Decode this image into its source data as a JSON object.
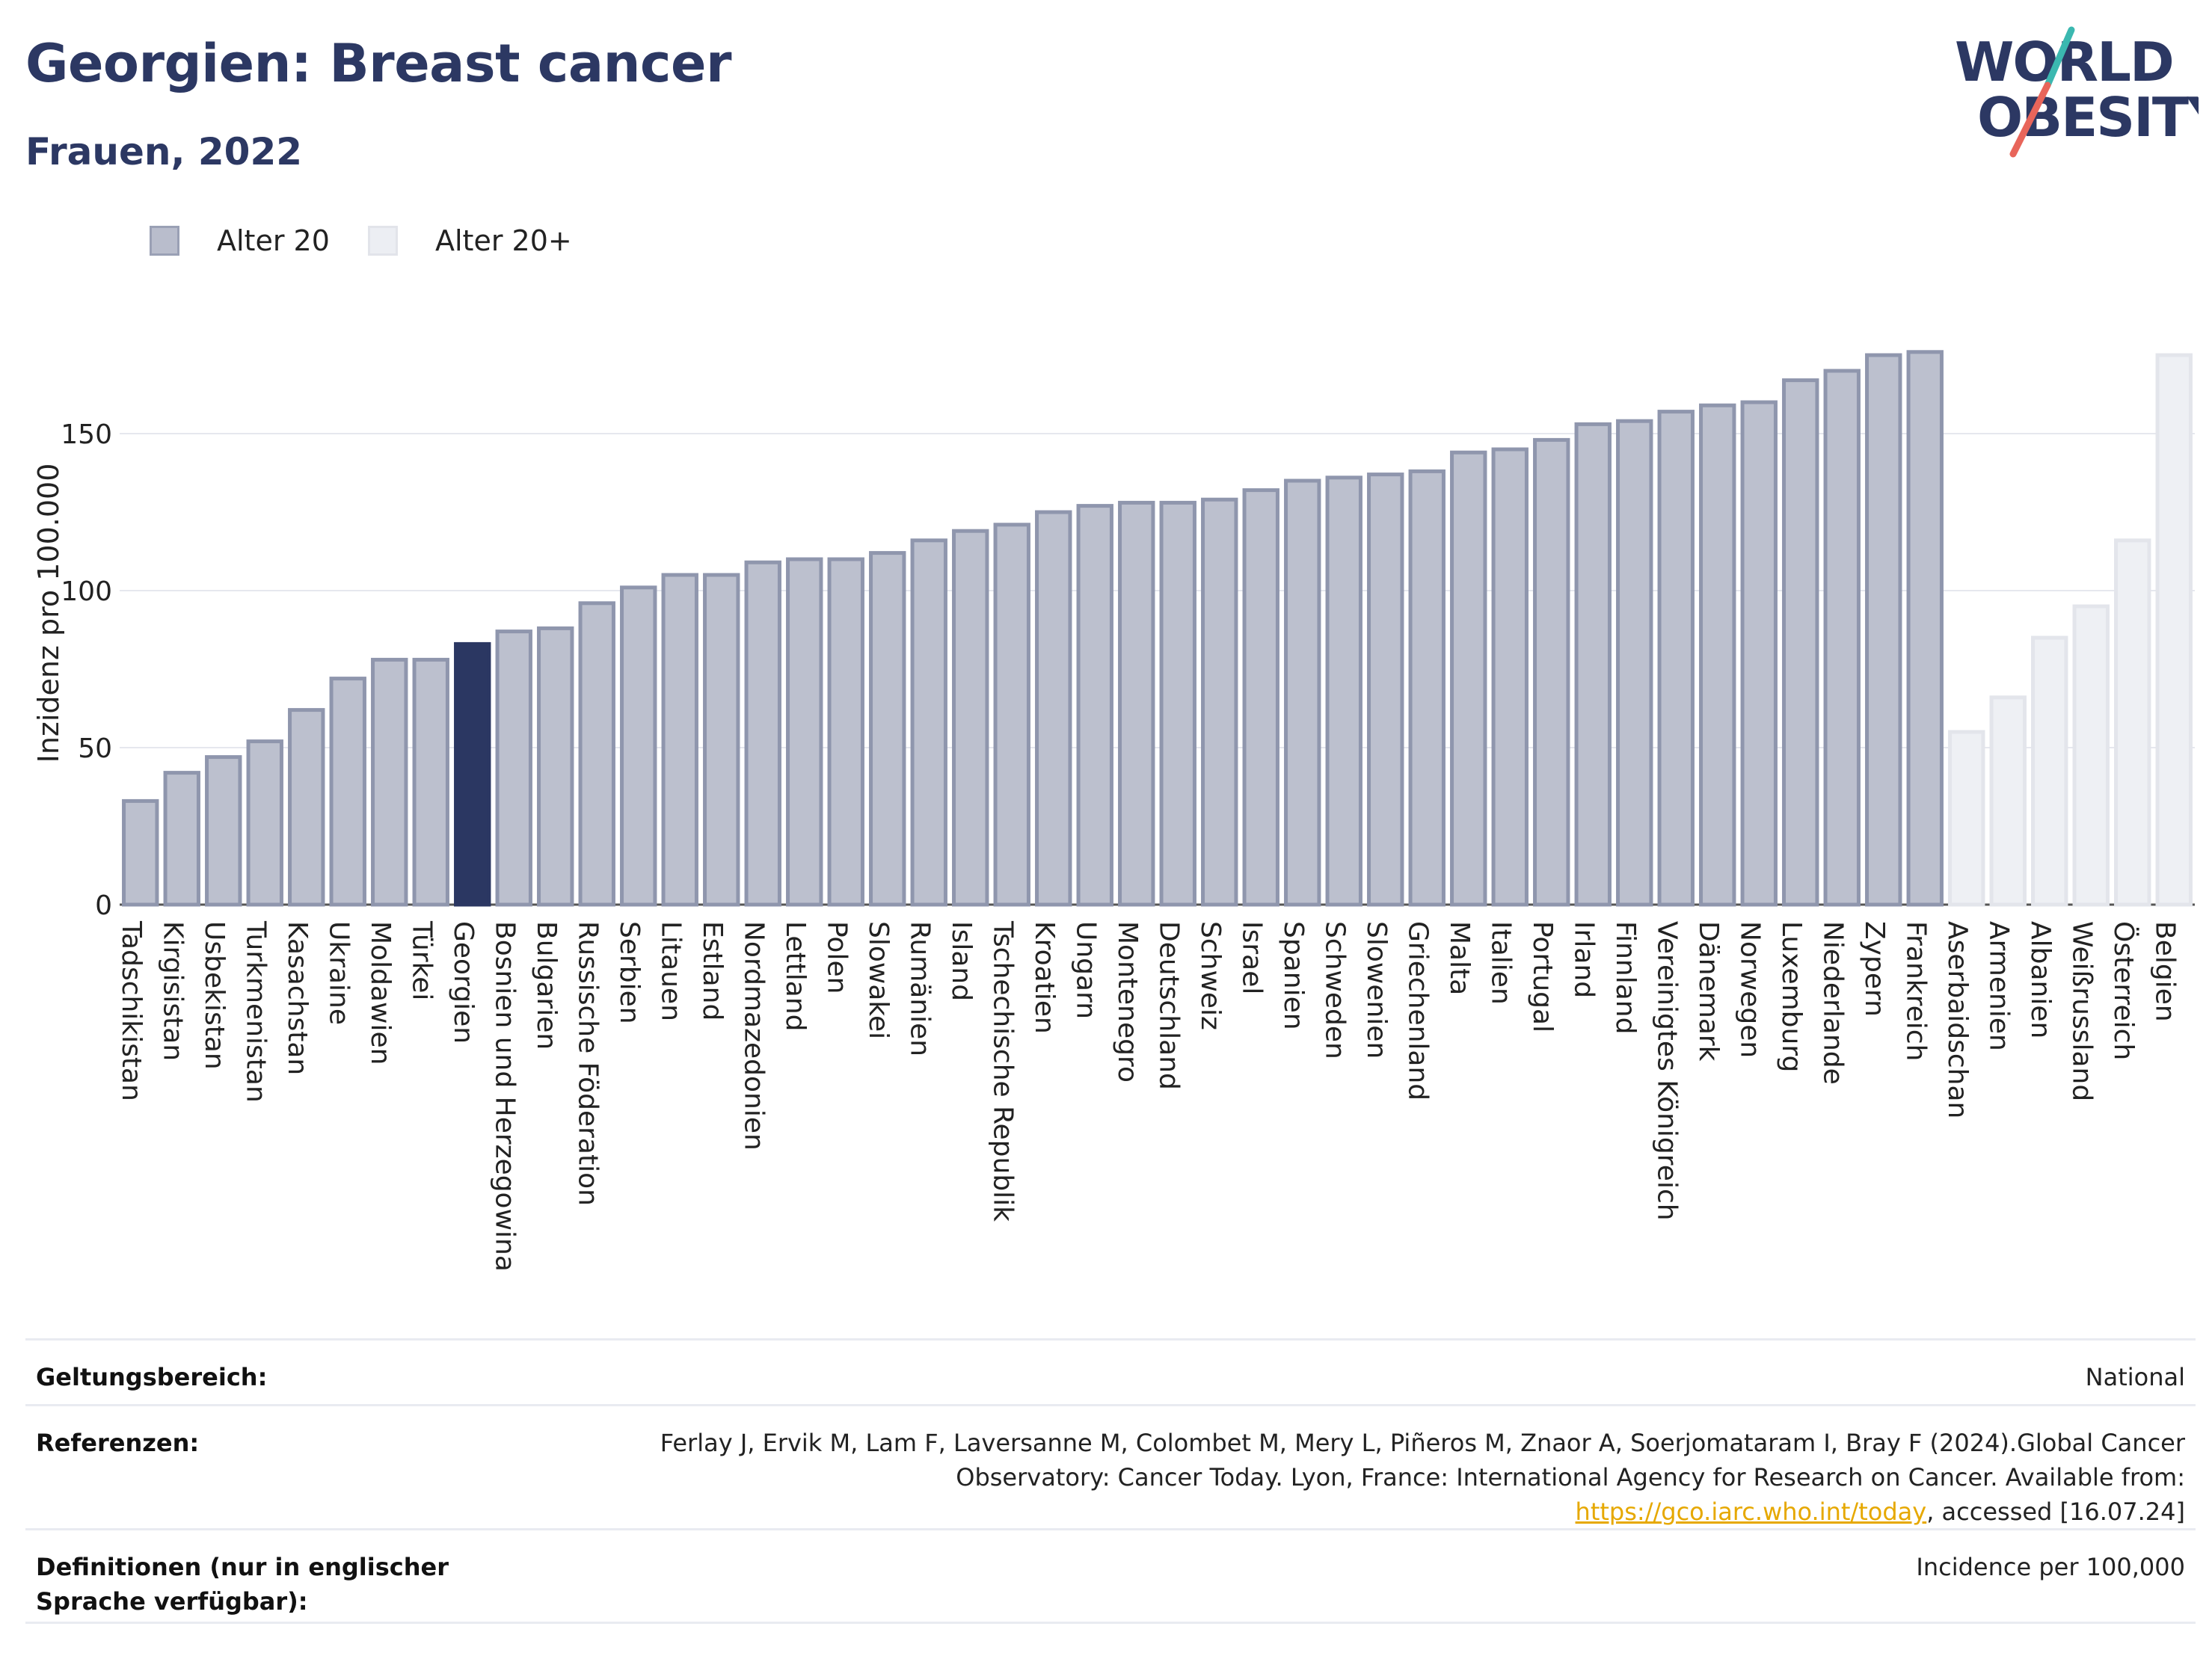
{
  "header": {
    "title": "Georgien: Breast cancer",
    "subtitle": "Frauen, 2022"
  },
  "logo": {
    "line1": "WORLD",
    "line2": "OBESITY",
    "colors": {
      "text": "#2c3863",
      "slash_teal": "#3bb8b0",
      "slash_red": "#e8655a"
    }
  },
  "legend": {
    "items": [
      {
        "label": "Alter 20",
        "color": "#b9bdcc",
        "border": "#9aa0b5"
      },
      {
        "label": "Alter 20+",
        "color": "#eceef3",
        "border": "#e2e4ea"
      }
    ]
  },
  "colors": {
    "bar_default": "#bcc0ce",
    "bar_default_border": "#8f96ad",
    "bar_highlight": "#2b3762",
    "bar_light": "#eef0f4",
    "bar_light_border": "#e3e5eb",
    "grid": "#e6e8ee",
    "axis": "#555555"
  },
  "chart_data": {
    "type": "bar",
    "ylabel": "Inzidenz pro 100.000",
    "xlabel": "",
    "ylim": [
      0,
      190
    ],
    "yticks": [
      0,
      50,
      100,
      150
    ],
    "highlight": "Georgien",
    "series": [
      {
        "name": "Alter 20",
        "categories": [
          "Tadschikistan",
          "Kirgisistan",
          "Usbekistan",
          "Turkmenistan",
          "Kasachstan",
          "Ukraine",
          "Moldawien",
          "Türkei",
          "Georgien",
          "Bosnien und Herzegowina",
          "Bulgarien",
          "Russische Föderation",
          "Serbien",
          "Litauen",
          "Estland",
          "Nordmazedonien",
          "Lettland",
          "Polen",
          "Slowakei",
          "Rumänien",
          "Island",
          "Tschechische Republik",
          "Kroatien",
          "Ungarn",
          "Montenegro",
          "Deutschland",
          "Schweiz",
          "Israel",
          "Spanien",
          "Schweden",
          "Slowenien",
          "Griechenland",
          "Malta",
          "Italien",
          "Portugal",
          "Irland",
          "Finnland",
          "Vereinigtes Königreich",
          "Dänemark",
          "Norwegen",
          "Luxemburg",
          "Niederlande",
          "Zypern",
          "Frankreich"
        ],
        "values": [
          33,
          42,
          47,
          52,
          62,
          72,
          78,
          78,
          83,
          87,
          88,
          96,
          101,
          105,
          105,
          109,
          110,
          110,
          112,
          116,
          119,
          121,
          125,
          127,
          128,
          128,
          129,
          132,
          135,
          136,
          137,
          138,
          144,
          145,
          148,
          153,
          154,
          157,
          159,
          160,
          167,
          170,
          175,
          176
        ]
      },
      {
        "name": "Alter 20+",
        "categories": [
          "Aserbaidschan",
          "Armenien",
          "Albanien",
          "Weißrussland",
          "Österreich",
          "Belgien"
        ],
        "values": [
          55,
          66,
          85,
          95,
          116,
          175
        ]
      }
    ]
  },
  "info": {
    "rows": [
      {
        "label": "Geltungsbereich:",
        "value": "National"
      },
      {
        "label": "Referenzen:",
        "value_pre": "Ferlay J, Ervik M, Lam F, Laversanne M, Colombet M, Mery L, Piñeros M, Znaor A, Soerjomataram I, Bray F (2024).Global Cancer Observatory: Cancer Today. Lyon, France: International Agency for Research on Cancer. Available from: ",
        "link": "https://gco.iarc.who.int/today",
        "value_post": ", accessed [16.07.24]"
      },
      {
        "label": "Definitionen (nur in englischer Sprache verfügbar):",
        "value": "Incidence per 100,000"
      }
    ]
  }
}
